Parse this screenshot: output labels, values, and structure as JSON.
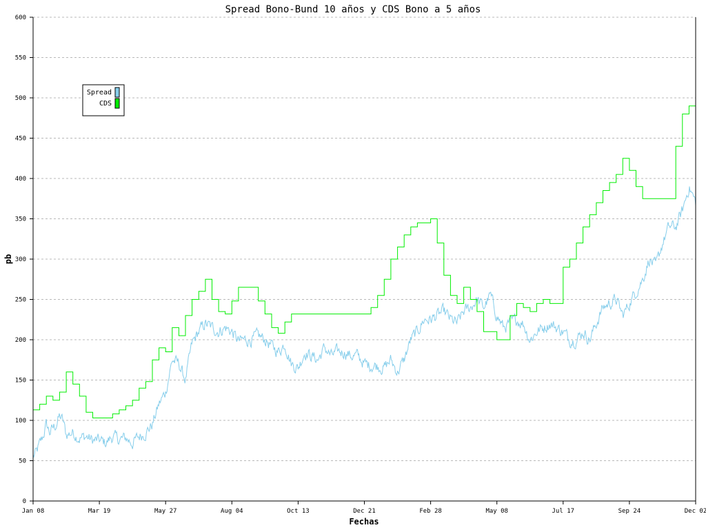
{
  "chart_data": {
    "type": "line",
    "title": "Spread Bono-Bund 10 años y CDS Bono a 5 años",
    "xlabel": "Fechas",
    "ylabel": "pb",
    "ylim": [
      0,
      600
    ],
    "yticks": [
      0,
      50,
      100,
      150,
      200,
      250,
      300,
      350,
      400,
      450,
      500,
      550,
      600
    ],
    "grid": "horizontal-dashed",
    "legend_position": "top-left",
    "x_tick_labels": [
      "Jan 08",
      "Mar 19",
      "May 27",
      "Aug 04",
      "Oct 13",
      "Dec 21",
      "Feb 28",
      "May 08",
      "Jul 17",
      "Sep 24",
      "Dec 02"
    ],
    "x_index_range": [
      0,
      100
    ],
    "series": [
      {
        "name": "Spread",
        "color": "#87ceeb",
        "render": "noisy-line",
        "noise_amplitude": 8,
        "points": [
          [
            0,
            55
          ],
          [
            0.5,
            60
          ],
          [
            1,
            70
          ],
          [
            1.5,
            80
          ],
          [
            2,
            95
          ],
          [
            2.5,
            85
          ],
          [
            3,
            90
          ],
          [
            3.5,
            95
          ],
          [
            4,
            105
          ],
          [
            4.5,
            100
          ],
          [
            5,
            82
          ],
          [
            6,
            85
          ],
          [
            7,
            78
          ],
          [
            8,
            80
          ],
          [
            9,
            75
          ],
          [
            10,
            75
          ],
          [
            11,
            72
          ],
          [
            12,
            80
          ],
          [
            13,
            76
          ],
          [
            14,
            78
          ],
          [
            15,
            72
          ],
          [
            16,
            80
          ],
          [
            17,
            85
          ],
          [
            18,
            95
          ],
          [
            19,
            120
          ],
          [
            20,
            135
          ],
          [
            21,
            175
          ],
          [
            22,
            170
          ],
          [
            23,
            150
          ],
          [
            24,
            195
          ],
          [
            25,
            210
          ],
          [
            26,
            220
          ],
          [
            27,
            215
          ],
          [
            28,
            210
          ],
          [
            29,
            215
          ],
          [
            30,
            210
          ],
          [
            31,
            198
          ],
          [
            32,
            200
          ],
          [
            33,
            200
          ],
          [
            34,
            205
          ],
          [
            35,
            200
          ],
          [
            36,
            192
          ],
          [
            37,
            185
          ],
          [
            38,
            195
          ],
          [
            39,
            170
          ],
          [
            40,
            165
          ],
          [
            41,
            185
          ],
          [
            42,
            180
          ],
          [
            43,
            175
          ],
          [
            44,
            190
          ],
          [
            45,
            180
          ],
          [
            46,
            185
          ],
          [
            47,
            185
          ],
          [
            48,
            180
          ],
          [
            49,
            180
          ],
          [
            50,
            170
          ],
          [
            51,
            168
          ],
          [
            52,
            168
          ],
          [
            53,
            165
          ],
          [
            54,
            175
          ],
          [
            55,
            160
          ],
          [
            56,
            175
          ],
          [
            57,
            200
          ],
          [
            58,
            210
          ],
          [
            59,
            225
          ],
          [
            60,
            225
          ],
          [
            61,
            230
          ],
          [
            62,
            235
          ],
          [
            63,
            225
          ],
          [
            64,
            220
          ],
          [
            65,
            235
          ],
          [
            66,
            240
          ],
          [
            67,
            250
          ],
          [
            68,
            240
          ],
          [
            69,
            255
          ],
          [
            70,
            230
          ],
          [
            71,
            215
          ],
          [
            72,
            220
          ],
          [
            73,
            225
          ],
          [
            74,
            220
          ],
          [
            75,
            200
          ],
          [
            76,
            210
          ],
          [
            77,
            215
          ],
          [
            78,
            220
          ],
          [
            79,
            215
          ],
          [
            80,
            210
          ],
          [
            81,
            200
          ],
          [
            82,
            200
          ],
          [
            83,
            210
          ],
          [
            84,
            200
          ],
          [
            85,
            220
          ],
          [
            86,
            240
          ],
          [
            87,
            245
          ],
          [
            88,
            250
          ],
          [
            89,
            230
          ],
          [
            90,
            245
          ],
          [
            91,
            260
          ],
          [
            92,
            275
          ],
          [
            93,
            300
          ],
          [
            94,
            290
          ],
          [
            95,
            320
          ],
          [
            96,
            340
          ],
          [
            97,
            340
          ],
          [
            98,
            360
          ],
          [
            99,
            390
          ],
          [
            100,
            370
          ]
        ]
      },
      {
        "name": "CDS",
        "color": "#00ee00",
        "render": "step",
        "points": [
          [
            0,
            113
          ],
          [
            1,
            120
          ],
          [
            2,
            130
          ],
          [
            3,
            125
          ],
          [
            4,
            135
          ],
          [
            5,
            160
          ],
          [
            6,
            145
          ],
          [
            7,
            130
          ],
          [
            8,
            110
          ],
          [
            9,
            103
          ],
          [
            10,
            103
          ],
          [
            11,
            103
          ],
          [
            12,
            108
          ],
          [
            13,
            113
          ],
          [
            14,
            118
          ],
          [
            15,
            125
          ],
          [
            16,
            140
          ],
          [
            17,
            148
          ],
          [
            18,
            175
          ],
          [
            19,
            190
          ],
          [
            20,
            185
          ],
          [
            21,
            215
          ],
          [
            22,
            205
          ],
          [
            23,
            230
          ],
          [
            24,
            250
          ],
          [
            25,
            260
          ],
          [
            26,
            275
          ],
          [
            27,
            250
          ],
          [
            28,
            235
          ],
          [
            29,
            232
          ],
          [
            30,
            248
          ],
          [
            31,
            265
          ],
          [
            32,
            265
          ],
          [
            33,
            265
          ],
          [
            34,
            248
          ],
          [
            35,
            232
          ],
          [
            36,
            215
          ],
          [
            37,
            208
          ],
          [
            38,
            222
          ],
          [
            39,
            232
          ],
          [
            40,
            232
          ],
          [
            41,
            232
          ],
          [
            42,
            232
          ],
          [
            43,
            232
          ],
          [
            44,
            232
          ],
          [
            45,
            232
          ],
          [
            46,
            232
          ],
          [
            47,
            232
          ],
          [
            48,
            232
          ],
          [
            49,
            232
          ],
          [
            50,
            232
          ],
          [
            51,
            240
          ],
          [
            52,
            255
          ],
          [
            53,
            275
          ],
          [
            54,
            300
          ],
          [
            55,
            315
          ],
          [
            56,
            330
          ],
          [
            57,
            340
          ],
          [
            58,
            345
          ],
          [
            59,
            345
          ],
          [
            60,
            350
          ],
          [
            61,
            320
          ],
          [
            62,
            280
          ],
          [
            63,
            255
          ],
          [
            64,
            245
          ],
          [
            65,
            265
          ],
          [
            66,
            250
          ],
          [
            67,
            235
          ],
          [
            68,
            210
          ],
          [
            69,
            210
          ],
          [
            70,
            200
          ],
          [
            71,
            200
          ],
          [
            72,
            230
          ],
          [
            73,
            245
          ],
          [
            74,
            240
          ],
          [
            75,
            235
          ],
          [
            76,
            245
          ],
          [
            77,
            250
          ],
          [
            78,
            245
          ],
          [
            79,
            245
          ],
          [
            80,
            290
          ],
          [
            81,
            300
          ],
          [
            82,
            320
          ],
          [
            83,
            340
          ],
          [
            84,
            355
          ],
          [
            85,
            370
          ],
          [
            86,
            385
          ],
          [
            87,
            395
          ],
          [
            88,
            405
          ],
          [
            89,
            425
          ],
          [
            90,
            410
          ],
          [
            91,
            390
          ],
          [
            92,
            375
          ],
          [
            93,
            375
          ],
          [
            94,
            375
          ],
          [
            95,
            375
          ],
          [
            96,
            375
          ],
          [
            97,
            440
          ],
          [
            98,
            480
          ],
          [
            99,
            490
          ],
          [
            100,
            470
          ]
        ]
      }
    ]
  }
}
